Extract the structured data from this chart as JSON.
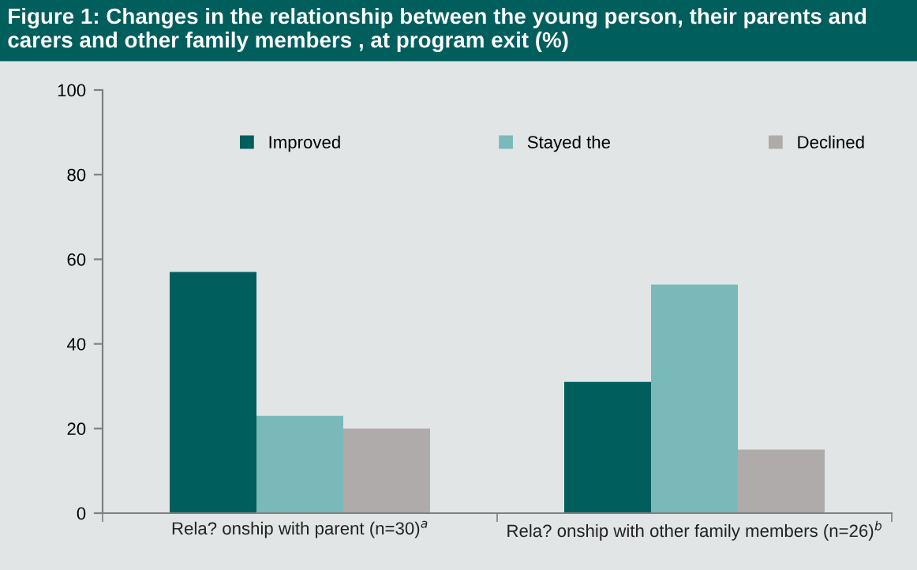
{
  "chart_data": {
    "type": "bar",
    "title": "Figure 1: Changes in the relationship between the young person, their parents and carers and other family members , at program exit (%)",
    "categories": [
      "Rela? onship with parent (n=30)$^{a}$",
      "Rela? onship with other family members (n=26)$^{b}$"
    ],
    "series": [
      {
        "name": "Improved",
        "color": "#005e5d",
        "values": [
          57,
          31
        ]
      },
      {
        "name": "Stayed the",
        "color": "#79b9b9",
        "values": [
          23,
          54
        ]
      },
      {
        "name": "Declined",
        "color": "#afabab",
        "values": [
          20,
          15
        ]
      }
    ],
    "ylim": [
      0,
      100
    ],
    "yticks": [
      0,
      20,
      40,
      60,
      80,
      100
    ],
    "grid": false,
    "legend": "top"
  }
}
